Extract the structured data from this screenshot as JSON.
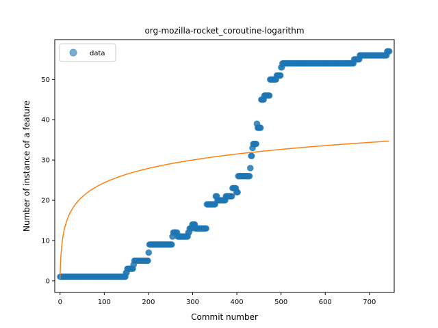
{
  "chart_data": {
    "type": "scatter",
    "title": "org-mozilla-rocket_coroutine-logarithm",
    "xlabel": "Commit number",
    "ylabel": "Number of instance of a feature",
    "xlim": [
      -12,
      756
    ],
    "ylim": [
      -2.9,
      59.9
    ],
    "xticks": [
      0,
      100,
      200,
      300,
      400,
      500,
      600,
      700
    ],
    "yticks": [
      0,
      10,
      20,
      30,
      40,
      50
    ],
    "grid": false,
    "legend": {
      "position": "top-left",
      "entries": [
        "data"
      ]
    },
    "series": [
      {
        "name": "data",
        "kind": "scatter",
        "color": "#1f77b4",
        "steps": [
          [
            0,
            1
          ],
          [
            149,
            2
          ],
          [
            152,
            3
          ],
          [
            166,
            4
          ],
          [
            168,
            5
          ],
          [
            200,
            7
          ],
          [
            202,
            9
          ],
          [
            254,
            11
          ],
          [
            256,
            12
          ],
          [
            266,
            11
          ],
          [
            290,
            12
          ],
          [
            293,
            13
          ],
          [
            299,
            14
          ],
          [
            306,
            13
          ],
          [
            332,
            19
          ],
          [
            352,
            21
          ],
          [
            356,
            20
          ],
          [
            375,
            21
          ],
          [
            390,
            23
          ],
          [
            399,
            22
          ],
          [
            403,
            26
          ],
          [
            430,
            28
          ],
          [
            432,
            31
          ],
          [
            435,
            33
          ],
          [
            437,
            34
          ],
          [
            445,
            39
          ],
          [
            447,
            38
          ],
          [
            455,
            45
          ],
          [
            462,
            46
          ],
          [
            475,
            50
          ],
          [
            490,
            51
          ],
          [
            500,
            53
          ],
          [
            503,
            54
          ],
          [
            665,
            55
          ],
          [
            678,
            56
          ],
          [
            740,
            57
          ],
          [
            745,
            57
          ]
        ]
      },
      {
        "name": "",
        "kind": "line",
        "color": "#ff7f0e",
        "fit": "logarithm",
        "a": 0.5,
        "b": 5.17,
        "x_range": [
          0,
          745
        ]
      }
    ]
  }
}
